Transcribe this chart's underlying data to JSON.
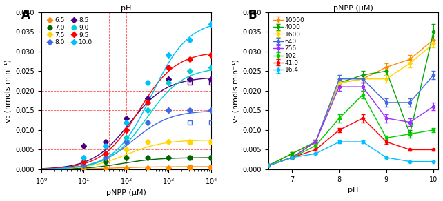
{
  "panel_A": {
    "title": "pH",
    "xlabel": "pNPP (μM)",
    "ylabel": "v₀ (nmols min⁻¹)",
    "ylim": [
      0,
      0.04
    ],
    "xlim": [
      1,
      10000
    ],
    "legend_entries": [
      {
        "label": "6.5",
        "color": "#FF8C00"
      },
      {
        "label": "7.0",
        "color": "#006400"
      },
      {
        "label": "7.5",
        "color": "#FFD700"
      },
      {
        "label": "8.0",
        "color": "#4169E1"
      },
      {
        "label": "8.5",
        "color": "#4B0082"
      },
      {
        "label": "9.0",
        "color": "#00CED1"
      },
      {
        "label": "9.5",
        "color": "#FF0000"
      },
      {
        "label": "10.0",
        "color": "#00BFFF"
      }
    ],
    "michaelis_params": [
      {
        "pH": 6.5,
        "Vmax": 0.0007,
        "Km": 50,
        "color": "#FF8C00"
      },
      {
        "pH": 7.0,
        "Vmax": 0.003,
        "Km": 80,
        "color": "#006400"
      },
      {
        "pH": 7.5,
        "Vmax": 0.0075,
        "Km": 100,
        "color": "#FFD700"
      },
      {
        "pH": 8.0,
        "Vmax": 0.015,
        "Km": 150,
        "color": "#4169E1"
      },
      {
        "pH": 8.5,
        "Vmax": 0.0235,
        "Km": 120,
        "color": "#4B0082"
      },
      {
        "pH": 9.0,
        "Vmax": 0.026,
        "Km": 300,
        "color": "#00CED1"
      },
      {
        "pH": 9.5,
        "Vmax": 0.03,
        "Km": 200,
        "color": "#FF0000"
      },
      {
        "pH": 10.0,
        "Vmax": 0.038,
        "Km": 400,
        "color": "#00BFFF"
      }
    ],
    "data_points": {
      "6.5": {
        "x": [
          10,
          32,
          100,
          316,
          1000,
          3162,
          10000
        ],
        "y": [
          0.0001,
          0.0002,
          0.0003,
          0.0004,
          0.0004,
          0.0005,
          0.0005
        ]
      },
      "7.0": {
        "x": [
          10,
          32,
          100,
          316,
          1000,
          3162,
          10000
        ],
        "y": [
          0.001,
          0.002,
          0.003,
          0.003,
          0.003,
          0.003,
          0.003
        ]
      },
      "7.5": {
        "x": [
          10,
          32,
          100,
          316,
          1000,
          3162,
          10000
        ],
        "y": [
          0.001,
          0.003,
          0.005,
          0.007,
          0.007,
          0.007,
          0.007
        ]
      },
      "8.0": {
        "x": [
          10,
          32,
          100,
          316,
          1000,
          3162,
          10000
        ],
        "y": [
          0.001,
          0.003,
          0.007,
          0.012,
          0.015,
          0.015,
          0.015
        ]
      },
      "8.5": {
        "x": [
          10,
          32,
          100,
          316,
          1000,
          3162,
          10000
        ],
        "y": [
          0.006,
          0.007,
          0.013,
          0.018,
          0.023,
          0.023,
          0.023
        ]
      },
      "9.0": {
        "x": [
          10,
          32,
          100,
          316,
          1000,
          3162,
          10000
        ],
        "y": [
          0.002,
          0.004,
          0.008,
          0.015,
          0.022,
          0.025,
          0.026
        ]
      },
      "9.5": {
        "x": [
          10,
          32,
          100,
          316,
          1000,
          3162,
          10000
        ],
        "y": [
          0.002,
          0.004,
          0.01,
          0.017,
          0.026,
          0.028,
          0.029
        ]
      },
      "10.0": {
        "x": [
          10,
          32,
          100,
          316,
          1000,
          3162,
          10000
        ],
        "y": [
          0.003,
          0.006,
          0.012,
          0.022,
          0.029,
          0.033,
          0.037
        ]
      }
    },
    "extra_points": {
      "6.5": {
        "x": [
          3162,
          10000
        ],
        "y": [
          0.0005,
          0.0005
        ],
        "filled": false
      },
      "7.0": {
        "x": [
          3162,
          10000
        ],
        "y": [
          0.003,
          0.003
        ],
        "filled": false
      },
      "7.5": {
        "x": [
          3162,
          10000
        ],
        "y": [
          0.007,
          0.007
        ],
        "filled": false
      },
      "8.0": {
        "x": [
          3162,
          10000
        ],
        "y": [
          0.012,
          0.012
        ],
        "filled": false
      },
      "8.5": {
        "x": [
          3162,
          10000
        ],
        "y": [
          0.022,
          0.022
        ],
        "filled": false
      }
    },
    "red_hlines": [
      0.002,
      0.005,
      0.007,
      0.015,
      0.016,
      0.02
    ],
    "red_vlines": [
      40,
      100,
      200
    ]
  },
  "panel_B": {
    "title": "pNPP (μM)",
    "xlabel": "pH",
    "ylabel": "v₀ (nmols min⁻¹)",
    "ylim": [
      0,
      0.04
    ],
    "xlim": [
      6.5,
      10.1
    ],
    "ph_values": [
      6.5,
      7.0,
      7.5,
      8.0,
      8.5,
      9.0,
      9.5,
      10.0
    ],
    "series": [
      {
        "label": "10000",
        "color": "#FF8C00",
        "y": [
          0.001,
          0.004,
          0.007,
          0.022,
          0.023,
          0.026,
          0.028,
          0.033
        ],
        "yerr": [
          0.0003,
          0.0003,
          0.0005,
          0.001,
          0.001,
          0.001,
          0.001,
          0.001
        ]
      },
      {
        "label": "4000",
        "color": "#00AA00",
        "y": [
          0.001,
          0.004,
          0.007,
          0.022,
          0.024,
          0.025,
          0.009,
          0.035
        ],
        "yerr": [
          0.0003,
          0.0003,
          0.0005,
          0.001,
          0.001,
          0.001,
          0.001,
          0.002
        ]
      },
      {
        "label": "1600",
        "color": "#FFD700",
        "y": [
          0.001,
          0.003,
          0.007,
          0.022,
          0.023,
          0.023,
          0.027,
          0.032
        ],
        "yerr": [
          0.0002,
          0.0003,
          0.0005,
          0.001,
          0.001,
          0.001,
          0.001,
          0.001
        ]
      },
      {
        "label": "640",
        "color": "#4169E1",
        "y": [
          0.001,
          0.003,
          0.007,
          0.023,
          0.023,
          0.017,
          0.017,
          0.024
        ],
        "yerr": [
          0.0002,
          0.0002,
          0.0004,
          0.001,
          0.001,
          0.001,
          0.001,
          0.001
        ]
      },
      {
        "label": "256",
        "color": "#9B30FF",
        "y": [
          0.001,
          0.003,
          0.007,
          0.021,
          0.021,
          0.013,
          0.012,
          0.016
        ],
        "yerr": [
          0.0002,
          0.0002,
          0.0004,
          0.001,
          0.001,
          0.001,
          0.001,
          0.001
        ]
      },
      {
        "label": "102",
        "color": "#00CC00",
        "y": [
          0.001,
          0.003,
          0.006,
          0.013,
          0.019,
          0.008,
          0.009,
          0.01
        ],
        "yerr": [
          0.0002,
          0.0002,
          0.0003,
          0.001,
          0.001,
          0.0005,
          0.0005,
          0.0005
        ]
      },
      {
        "label": "41.0",
        "color": "#FF0000",
        "y": [
          0.001,
          0.003,
          0.005,
          0.01,
          0.013,
          0.007,
          0.005,
          0.005
        ],
        "yerr": [
          0.0002,
          0.0002,
          0.0003,
          0.0005,
          0.001,
          0.0005,
          0.0003,
          0.0003
        ]
      },
      {
        "label": "16.4",
        "color": "#00BFFF",
        "y": [
          0.001,
          0.003,
          0.004,
          0.007,
          0.007,
          0.003,
          0.002,
          0.002
        ],
        "yerr": [
          0.0001,
          0.0002,
          0.0002,
          0.0003,
          0.0003,
          0.0002,
          0.0001,
          0.0001
        ]
      }
    ]
  }
}
